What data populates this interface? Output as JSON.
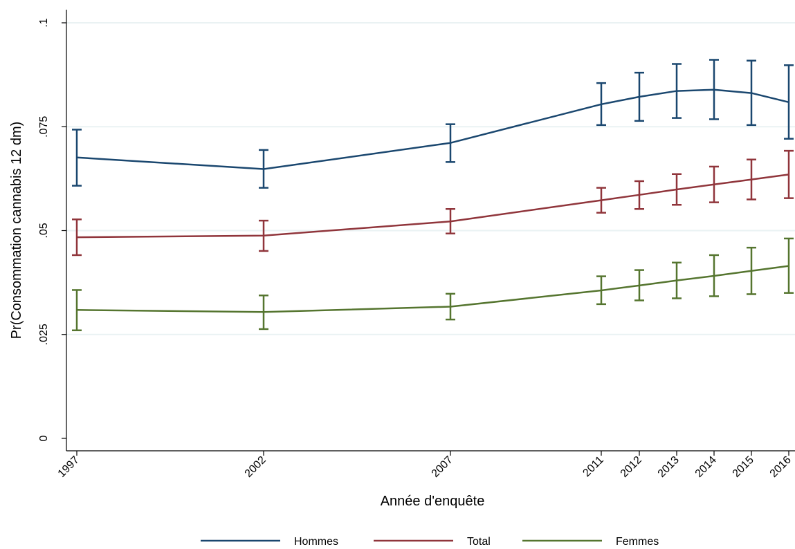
{
  "chart_data": {
    "type": "line",
    "title": "",
    "xlabel": "Année d'enquête",
    "ylabel": "Pr(Consommation cannabis 12 dm)",
    "x": [
      1997,
      2002,
      2007,
      2011,
      2012,
      2013,
      2014,
      2015,
      2016
    ],
    "x_tick_labels": [
      "1997",
      "2002",
      "2007",
      "2011",
      "2012",
      "2013",
      "2014",
      "2015",
      "2016"
    ],
    "y_ticks": [
      0,
      0.025,
      0.05,
      0.075,
      0.1
    ],
    "y_tick_labels": [
      "0",
      ".025",
      ".05",
      ".075",
      ".1"
    ],
    "ylim": [
      0,
      0.1
    ],
    "grid": "horizontal",
    "legend_position": "bottom",
    "series": [
      {
        "name": "Hommes",
        "color": "#1a476f",
        "values": [
          0.0676,
          0.0648,
          0.0711,
          0.0804,
          0.0822,
          0.0836,
          0.0839,
          0.0831,
          0.0809
        ],
        "lower": [
          0.0608,
          0.0603,
          0.0665,
          0.0754,
          0.0764,
          0.0771,
          0.0768,
          0.0754,
          0.0721
        ],
        "upper": [
          0.0743,
          0.0694,
          0.0756,
          0.0855,
          0.088,
          0.0901,
          0.0911,
          0.0909,
          0.0898
        ]
      },
      {
        "name": "Total",
        "color": "#90353b",
        "values": [
          0.0484,
          0.0488,
          0.0522,
          0.0573,
          0.0586,
          0.0599,
          0.0611,
          0.0623,
          0.0635
        ],
        "lower": [
          0.0441,
          0.0451,
          0.0493,
          0.0543,
          0.0552,
          0.0562,
          0.0568,
          0.0575,
          0.0578
        ],
        "upper": [
          0.0527,
          0.0524,
          0.0552,
          0.0603,
          0.0619,
          0.0636,
          0.0654,
          0.0671,
          0.0692
        ]
      },
      {
        "name": "Femmes",
        "color": "#55752f",
        "values": [
          0.0309,
          0.0304,
          0.0317,
          0.0356,
          0.0368,
          0.038,
          0.0391,
          0.0403,
          0.0415
        ],
        "lower": [
          0.026,
          0.0263,
          0.0286,
          0.0323,
          0.0332,
          0.0337,
          0.0342,
          0.0347,
          0.035
        ],
        "upper": [
          0.0357,
          0.0344,
          0.0348,
          0.039,
          0.0405,
          0.0423,
          0.0441,
          0.0459,
          0.0481
        ]
      }
    ]
  }
}
